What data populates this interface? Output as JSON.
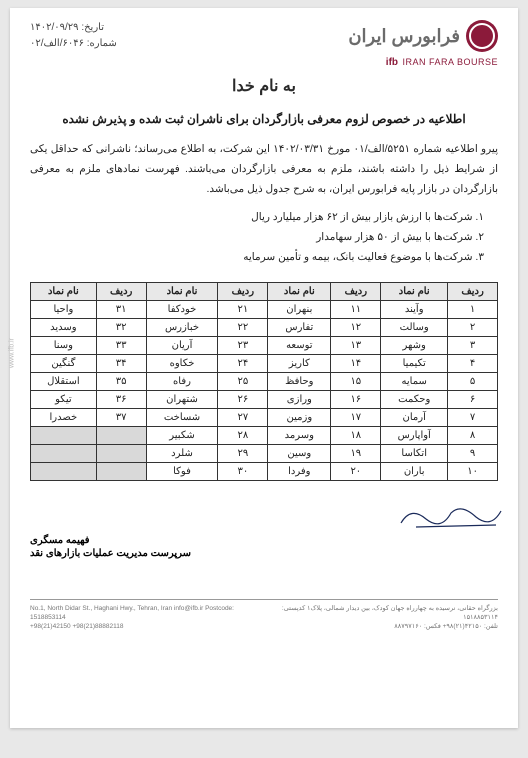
{
  "header": {
    "logo_text": "فرابورس ایران",
    "logo_sub_ifb": "ifb",
    "logo_sub_en": "IRAN FARA BOURSE",
    "bismillah": "به نام خدا",
    "date_label": "تاریخ:",
    "date_value": "۱۴۰۲/۰۹/۲۹",
    "ref_label": "شماره:",
    "ref_value": "۶۰۴۶/الف/۰۲"
  },
  "title": "اطلاعیه در خصوص لزوم معرفی بازارگردان برای ناشران ثبت شده و پذیرش نشده",
  "body": "پیرو اطلاعیه شماره ۵۲۵۱/الف/۰۱ مورخ ۱۴۰۲/۰۳/۳۱ این شرکت، به اطلاع می‌رساند؛ ناشرانی که حداقل یکی از شرایط ذیل را داشته باشند، ملزم به معرفی بازارگردان می‌باشند. فهرست نمادهای ملزم به معرفی بازارگردان در بازار پایه فرابورس ایران، به شرح جدول ذیل می‌باشد.",
  "list": [
    "۱. شرکت‌ها با ارزش بازار بیش از ۶۲ هزار میلیارد ریال",
    "۲. شرکت‌ها با بیش از ۵۰ هزار سهامدار",
    "۳. شرکت‌ها با موضوع فعالیت بانک، بیمه و تأمین سرمایه"
  ],
  "table": {
    "columns": [
      "ردیف",
      "نام نماد",
      "ردیف",
      "نام نماد",
      "ردیف",
      "نام نماد",
      "ردیف",
      "نام نماد"
    ],
    "rows": [
      [
        "۱",
        "وآیند",
        "۱۱",
        "بنهران",
        "۲۱",
        "خودکفا",
        "۳۱",
        "واحیا"
      ],
      [
        "۲",
        "وسالت",
        "۱۲",
        "تفارس",
        "۲۲",
        "خبازرس",
        "۳۲",
        "وسدید"
      ],
      [
        "۳",
        "وشهر",
        "۱۳",
        "توسعه",
        "۲۳",
        "آریان",
        "۳۳",
        "وسنا"
      ],
      [
        "۴",
        "تکیمیا",
        "۱۴",
        "کاریز",
        "۲۴",
        "خکاوه",
        "۳۴",
        "گنگین"
      ],
      [
        "۵",
        "سمایه",
        "۱۵",
        "وحافظ",
        "۲۵",
        "رفاه",
        "۳۵",
        "استقلال"
      ],
      [
        "۶",
        "وحکمت",
        "۱۶",
        "ورازی",
        "۲۶",
        "شتهران",
        "۳۶",
        "تیکو"
      ],
      [
        "۷",
        "آرمان",
        "۱۷",
        "وزمین",
        "۲۷",
        "شساخت",
        "۳۷",
        "خصدرا"
      ],
      [
        "۸",
        "آواپارس",
        "۱۸",
        "وسرمد",
        "۲۸",
        "شکبیر",
        "",
        ""
      ],
      [
        "۹",
        "اتکاسا",
        "۱۹",
        "وسین",
        "۲۹",
        "شلرد",
        "",
        ""
      ],
      [
        "۱۰",
        "باران",
        "۲۰",
        "وفردا",
        "۳۰",
        "فوکا",
        "",
        ""
      ]
    ]
  },
  "signature": {
    "name": "فهیمه مسگری",
    "title": "سرپرست مدیریت عملیات بازارهای نقد"
  },
  "footer": {
    "fa_addr": "بزرگراه حقانی، نرسیده به چهارراه جهان کودک، بین دیدار شمالی، پلاک۱ کدپستی: ۱۵۱۸۸۵۳۱۱۴",
    "fa_tel": "تلفن: ۴۲۱۵۰(۲۱)۹۸+  فکس: ۸۸۷۹۷۱۶۰",
    "en_addr": "No.1, North Didar St., Haghani Hwy., Tehran, Iran   info@ifb.ir   Postcode: 1518853114",
    "en_tel": "+98(21)42150   +98(21)88882118"
  },
  "sidetext": "www.ifb.ir"
}
